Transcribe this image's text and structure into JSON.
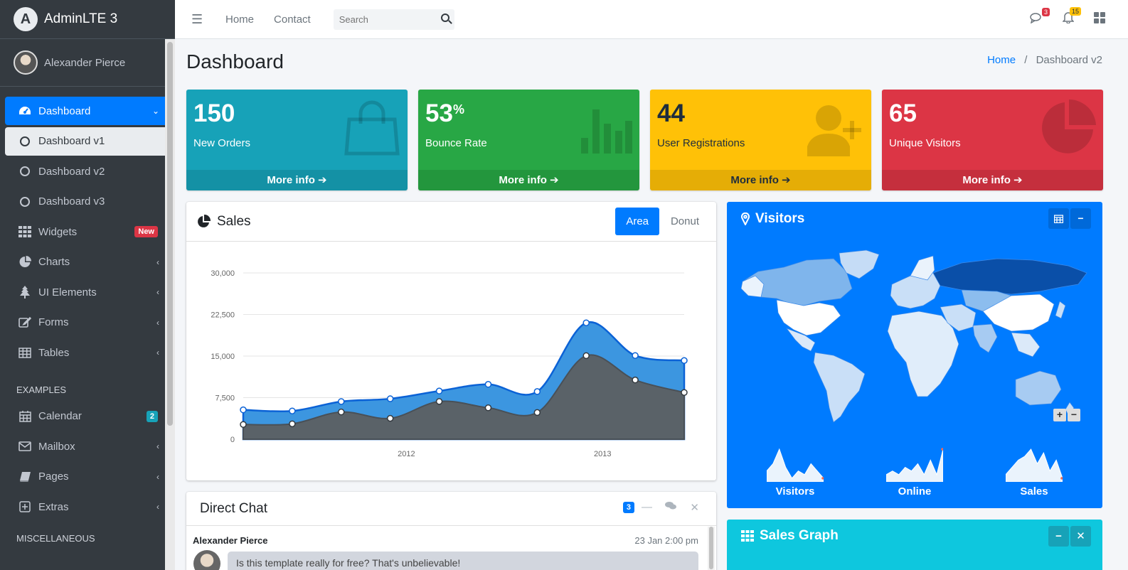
{
  "brand": {
    "name": "AdminLTE 3",
    "logo_letter": "A"
  },
  "user": {
    "name": "Alexander Pierce"
  },
  "sidebar": {
    "items": [
      {
        "label": "Dashboard",
        "icon": "dashboard-icon"
      },
      {
        "label": "Dashboard v1",
        "icon": "circle-icon"
      },
      {
        "label": "Dashboard v2",
        "icon": "circle-icon"
      },
      {
        "label": "Dashboard v3",
        "icon": "circle-icon"
      },
      {
        "label": "Widgets",
        "icon": "widgets-icon",
        "badge": "New"
      },
      {
        "label": "Charts",
        "icon": "pie-chart-icon"
      },
      {
        "label": "UI Elements",
        "icon": "tree-icon"
      },
      {
        "label": "Forms",
        "icon": "edit-icon"
      },
      {
        "label": "Tables",
        "icon": "table-icon"
      }
    ],
    "header_examples": "EXAMPLES",
    "examples": [
      {
        "label": "Calendar",
        "icon": "calendar-icon",
        "badge": "2"
      },
      {
        "label": "Mailbox",
        "icon": "envelope-icon"
      },
      {
        "label": "Pages",
        "icon": "book-icon"
      },
      {
        "label": "Extras",
        "icon": "plus-square-icon"
      }
    ],
    "header_misc": "MISCELLANEOUS"
  },
  "topbar": {
    "links": [
      "Home",
      "Contact"
    ],
    "search_placeholder": "Search",
    "messages_count": "3",
    "notifications_count": "15"
  },
  "page": {
    "title": "Dashboard",
    "breadcrumb_home": "Home",
    "breadcrumb_sep": "/",
    "breadcrumb_current": "Dashboard v2"
  },
  "boxes": [
    {
      "value": "150",
      "sup": "",
      "label": "New Orders",
      "footer": "More info",
      "color": "#17a2b8",
      "icon": "shopping-bag-icon"
    },
    {
      "value": "53",
      "sup": "%",
      "label": "Bounce Rate",
      "footer": "More info",
      "color": "#28a745",
      "icon": "bar-chart-icon"
    },
    {
      "value": "44",
      "sup": "",
      "label": "User Registrations",
      "footer": "More info",
      "color": "#ffc107",
      "icon": "user-plus-icon"
    },
    {
      "value": "65",
      "sup": "",
      "label": "Unique Visitors",
      "footer": "More info",
      "color": "#dc3545",
      "icon": "pie-chart-icon"
    }
  ],
  "sales": {
    "title": "Sales",
    "tabs": [
      "Area",
      "Donut"
    ],
    "active_tab": "Area"
  },
  "chart_data": {
    "type": "area",
    "x_ticks": [
      "2012",
      "2013"
    ],
    "y_ticks": [
      "30,000",
      "22,500",
      "15,000",
      "7,500",
      "0"
    ],
    "ylim": [
      0,
      30000
    ],
    "series": [
      {
        "values": [
          2666,
          2778,
          4912,
          3767,
          6810,
          5670,
          4820,
          15073,
          10687,
          8432
        ],
        "color": "#495057"
      },
      {
        "values": [
          5300,
          5100,
          6800,
          7300,
          8700,
          9900,
          8600,
          21000,
          15100,
          14200
        ],
        "color": "#3c8dbc"
      }
    ],
    "grid": true
  },
  "visitors": {
    "title": "Visitors",
    "sparklines": [
      {
        "label": "Visitors",
        "values": [
          3,
          5,
          9,
          4,
          1,
          3,
          2,
          5,
          3,
          1
        ]
      },
      {
        "label": "Online",
        "values": [
          2,
          3,
          2,
          4,
          3,
          5,
          2,
          6,
          2,
          9
        ]
      },
      {
        "label": "Sales",
        "values": [
          2,
          4,
          6,
          7,
          9,
          5,
          8,
          3,
          6,
          1
        ]
      }
    ]
  },
  "chat": {
    "title": "Direct Chat",
    "badge": "3",
    "sender": "Alexander Pierce",
    "time": "23 Jan 2:00 pm",
    "message": "Is this template really for free? That's unbelievable!"
  },
  "sales_graph": {
    "title": "Sales Graph"
  }
}
